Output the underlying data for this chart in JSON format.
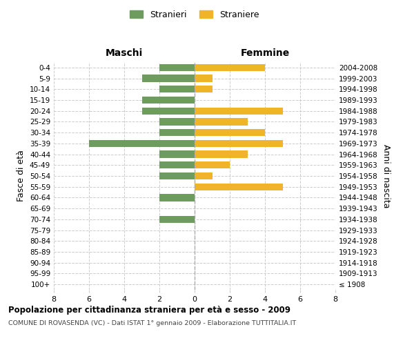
{
  "age_groups": [
    "100+",
    "95-99",
    "90-94",
    "85-89",
    "80-84",
    "75-79",
    "70-74",
    "65-69",
    "60-64",
    "55-59",
    "50-54",
    "45-49",
    "40-44",
    "35-39",
    "30-34",
    "25-29",
    "20-24",
    "15-19",
    "10-14",
    "5-9",
    "0-4"
  ],
  "birth_years": [
    "≤ 1908",
    "1909-1913",
    "1914-1918",
    "1919-1923",
    "1924-1928",
    "1929-1933",
    "1934-1938",
    "1939-1943",
    "1944-1948",
    "1949-1953",
    "1954-1958",
    "1959-1963",
    "1964-1968",
    "1969-1973",
    "1974-1978",
    "1979-1983",
    "1984-1988",
    "1989-1993",
    "1994-1998",
    "1999-2003",
    "2004-2008"
  ],
  "males": [
    0,
    0,
    0,
    0,
    0,
    0,
    2,
    0,
    2,
    0,
    2,
    2,
    2,
    6,
    2,
    2,
    3,
    3,
    2,
    3,
    2
  ],
  "females": [
    0,
    0,
    0,
    0,
    0,
    0,
    0,
    0,
    0,
    5,
    1,
    2,
    3,
    5,
    4,
    3,
    5,
    0,
    1,
    1,
    4
  ],
  "male_color": "#6e9b5e",
  "female_color": "#f0b429",
  "title": "Popolazione per cittadinanza straniera per età e sesso - 2009",
  "subtitle": "COMUNE DI ROVASENDA (VC) - Dati ISTAT 1° gennaio 2009 - Elaborazione TUTTITALIA.IT",
  "xlabel_left": "Maschi",
  "xlabel_right": "Femmine",
  "ylabel_left": "Fasce di età",
  "ylabel_right": "Anni di nascita",
  "legend_male": "Stranieri",
  "legend_female": "Straniere",
  "xlim": 8,
  "background_color": "#ffffff",
  "grid_color": "#cccccc",
  "bar_height": 0.65
}
